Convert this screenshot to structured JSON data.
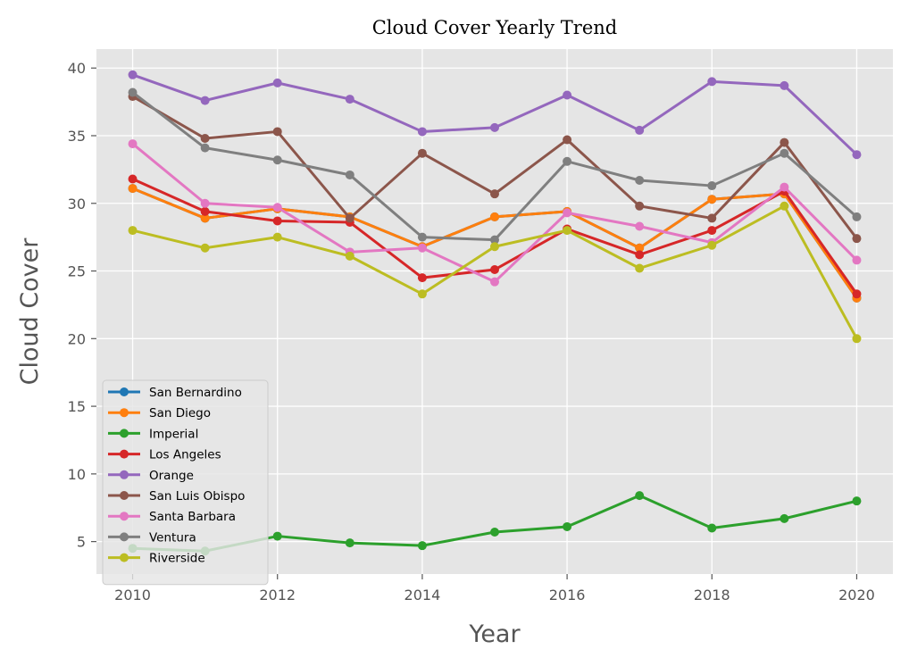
{
  "chart_data": {
    "type": "line",
    "title": "Cloud Cover Yearly Trend",
    "xlabel": "Year",
    "ylabel": "Cloud Cover",
    "x": [
      2010,
      2011,
      2012,
      2013,
      2014,
      2015,
      2016,
      2017,
      2018,
      2019,
      2020
    ],
    "xlim": [
      2009.5,
      2020.5
    ],
    "ylim": [
      2.6,
      41.4
    ],
    "xticks": [
      2010,
      2012,
      2014,
      2016,
      2018,
      2020
    ],
    "yticks": [
      5,
      10,
      15,
      20,
      25,
      30,
      35,
      40
    ],
    "grid": true,
    "style": "ggplot",
    "legend": "lower-left",
    "series": [
      {
        "name": "San Bernardino",
        "color": "#1f77b4",
        "values": [
          31.1,
          28.9,
          29.6,
          29.0,
          26.8,
          29.0,
          29.4,
          26.7,
          30.3,
          30.7,
          23.0
        ]
      },
      {
        "name": "San Diego",
        "color": "#ff7f0e",
        "values": [
          31.1,
          28.9,
          29.6,
          29.0,
          26.8,
          29.0,
          29.4,
          26.7,
          30.3,
          30.7,
          23.0
        ]
      },
      {
        "name": "Imperial",
        "color": "#2ca02c",
        "values": [
          4.5,
          4.3,
          5.4,
          4.9,
          4.7,
          5.7,
          6.1,
          8.4,
          6.0,
          6.7,
          8.0
        ]
      },
      {
        "name": "Los Angeles",
        "color": "#d62728",
        "values": [
          31.8,
          29.4,
          28.7,
          28.6,
          24.5,
          25.1,
          28.1,
          26.2,
          28.0,
          30.9,
          23.3
        ]
      },
      {
        "name": "Orange",
        "color": "#9467bd",
        "values": [
          39.5,
          37.6,
          38.9,
          37.7,
          35.3,
          35.6,
          38.0,
          35.4,
          39.0,
          38.7,
          33.6
        ]
      },
      {
        "name": "San Luis Obispo",
        "color": "#8c564b",
        "values": [
          37.9,
          34.8,
          35.3,
          28.9,
          33.7,
          30.7,
          34.7,
          29.8,
          28.9,
          34.5,
          27.4
        ]
      },
      {
        "name": "Santa Barbara",
        "color": "#e377c2",
        "values": [
          34.4,
          30.0,
          29.7,
          26.4,
          26.7,
          24.2,
          29.3,
          28.3,
          27.1,
          31.2,
          25.8
        ]
      },
      {
        "name": "Ventura",
        "color": "#7f7f7f",
        "values": [
          38.2,
          34.1,
          33.2,
          32.1,
          27.5,
          27.3,
          33.1,
          31.7,
          31.3,
          33.7,
          29.0
        ]
      },
      {
        "name": "Riverside",
        "color": "#bcbd22",
        "values": [
          28.0,
          26.7,
          27.5,
          26.1,
          23.3,
          26.8,
          28.0,
          25.2,
          26.9,
          29.8,
          20.0
        ]
      }
    ]
  }
}
